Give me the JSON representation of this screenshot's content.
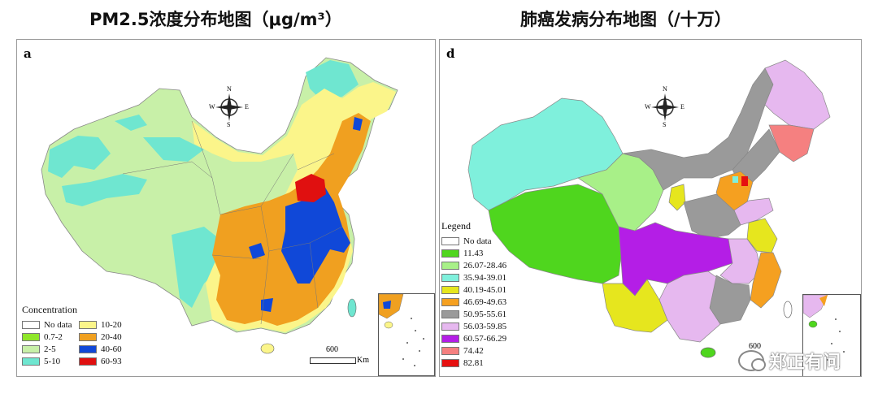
{
  "titles": {
    "left": "PM2.5浓度分布地图（μg/m³）",
    "right": "肺癌发病分布地图（/十万）"
  },
  "map_a": {
    "label": "a",
    "legend_title": "Concentration",
    "legend": [
      {
        "label": "No data",
        "color": "#ffffff"
      },
      {
        "label": "0.7-2",
        "color": "#8fe62a"
      },
      {
        "label": "2-5",
        "color": "#c8f0a8"
      },
      {
        "label": "5-10",
        "color": "#6fe6d0"
      },
      {
        "label": "10-20",
        "color": "#fbf58a"
      },
      {
        "label": "20-40",
        "color": "#f0a020"
      },
      {
        "label": "40-60",
        "color": "#1048d8"
      },
      {
        "label": "60-93",
        "color": "#e01010"
      }
    ],
    "scale_label": "600",
    "scale_unit": "Km"
  },
  "map_d": {
    "label": "d",
    "legend_title": "Legend",
    "legend": [
      {
        "label": "No data",
        "color": "#ffffff"
      },
      {
        "label": "11.43",
        "color": "#4fd61e"
      },
      {
        "label": "26.07-28.46",
        "color": "#a8f088"
      },
      {
        "label": "35.94-39.01",
        "color": "#7ff0dc"
      },
      {
        "label": "40.19-45.01",
        "color": "#e6e61e"
      },
      {
        "label": "46.69-49.63",
        "color": "#f5a020"
      },
      {
        "label": "50.95-55.61",
        "color": "#9a9a9a"
      },
      {
        "label": "56.03-59.85",
        "color": "#e6b8ef"
      },
      {
        "label": "60.57-66.29",
        "color": "#b41ee6"
      },
      {
        "label": "74.42",
        "color": "#f58080"
      },
      {
        "label": "82.81",
        "color": "#e61010"
      }
    ],
    "scale_label": "600"
  },
  "compass": {
    "n": "N",
    "s": "S",
    "e": "E",
    "w": "W"
  },
  "watermark": "郑正有问"
}
